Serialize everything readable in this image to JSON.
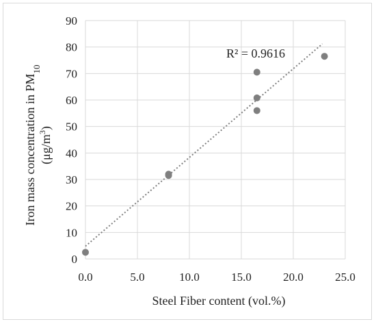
{
  "chart_data": {
    "type": "scatter",
    "title": "",
    "xlabel": "Steel Fiber content (vol.%)",
    "ylabel": {
      "line1_text": "Iron mass concentration in PM",
      "line1_sub": "10",
      "line2_text": "(μg/m",
      "line2_sup": "3",
      "line2_end": ")"
    },
    "xlim": [
      0,
      25
    ],
    "ylim": [
      0,
      90
    ],
    "x_ticks": [
      "0.0",
      "5.0",
      "10.0",
      "15.0",
      "20.0",
      "25.0"
    ],
    "y_ticks": [
      "0",
      "10",
      "20",
      "30",
      "40",
      "50",
      "60",
      "70",
      "80",
      "90"
    ],
    "grid": true,
    "series": [
      {
        "points": [
          {
            "x": 0.0,
            "y": 2.5
          },
          {
            "x": 8.0,
            "y": 31.5
          },
          {
            "x": 8.0,
            "y": 32.0
          },
          {
            "x": 16.5,
            "y": 70.5
          },
          {
            "x": 16.5,
            "y": 60.8
          },
          {
            "x": 16.5,
            "y": 56.0
          },
          {
            "x": 23.0,
            "y": 76.5
          }
        ],
        "color": "#7f7f7f"
      }
    ],
    "trendline": {
      "type": "linear",
      "x_start": 0.0,
      "y_start": 4.8,
      "x_end": 22.8,
      "y_end": 81.2,
      "color": "#7f7f7f",
      "label": "R² = 0.9616"
    }
  }
}
